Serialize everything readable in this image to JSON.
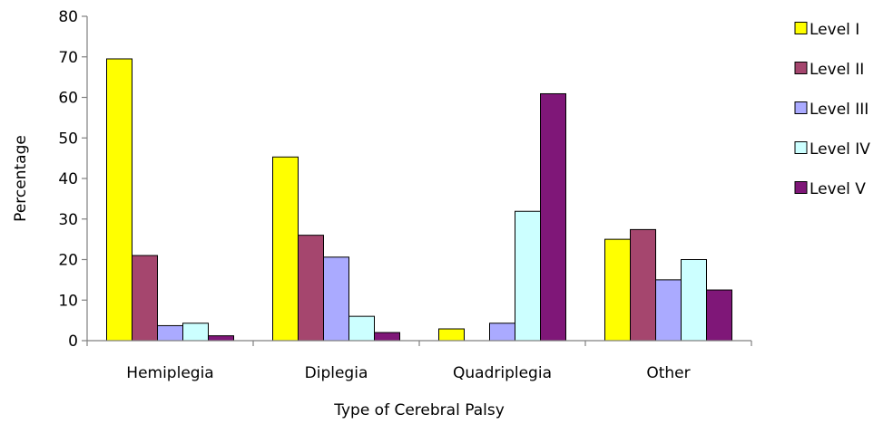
{
  "chart_data": {
    "type": "bar",
    "title": "",
    "xlabel": "Type of Cerebral Palsy",
    "ylabel": "Percentage",
    "ylim": [
      0,
      80
    ],
    "yticks": [
      0,
      10,
      20,
      30,
      40,
      50,
      60,
      70,
      80
    ],
    "grid": false,
    "legend_position": "right",
    "categories": [
      "Hemiplegia",
      "Diplegia",
      "Quadriplegia",
      "Other"
    ],
    "series": [
      {
        "name": "Level I",
        "color": "#FFFF00",
        "values": [
          69.5,
          45.3,
          2.9,
          25.0
        ]
      },
      {
        "name": "Level II",
        "color": "#A5466E",
        "values": [
          21.0,
          26.0,
          0,
          27.4
        ]
      },
      {
        "name": "Level III",
        "color": "#AAAAFF",
        "values": [
          3.7,
          20.6,
          4.3,
          15.0
        ]
      },
      {
        "name": "Level IV",
        "color": "#CCFFFF",
        "values": [
          4.3,
          6.0,
          31.9,
          20.0
        ]
      },
      {
        "name": "Level V",
        "color": "#7F1778",
        "values": [
          1.2,
          2.0,
          60.9,
          12.5
        ]
      }
    ]
  }
}
